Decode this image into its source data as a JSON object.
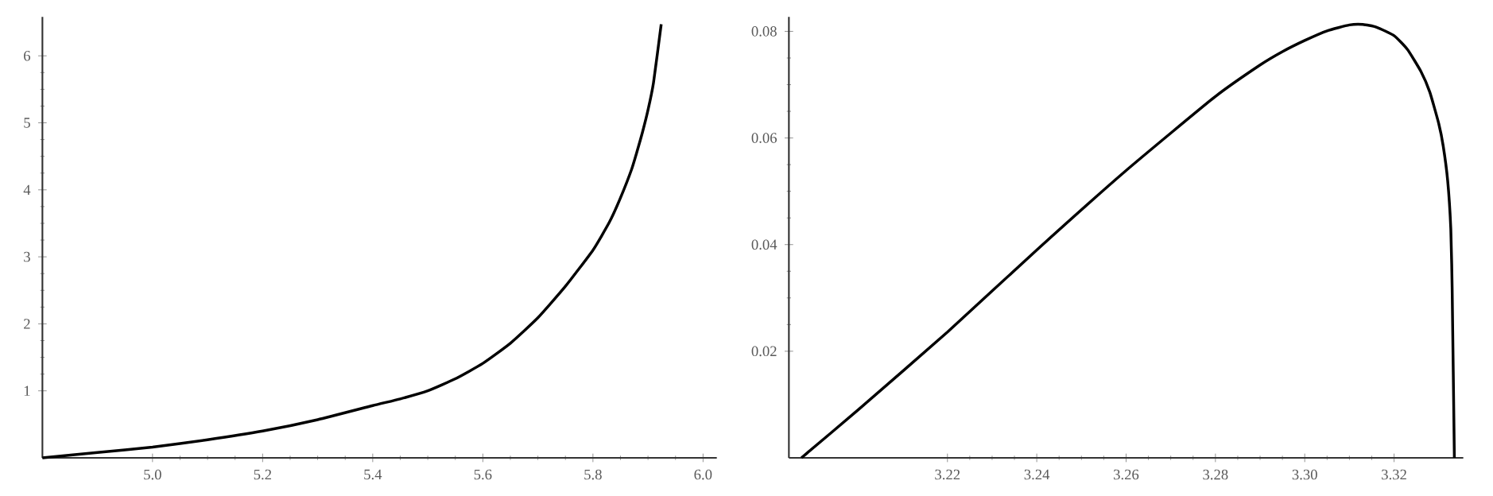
{
  "chart_data": [
    {
      "type": "line",
      "xlim": [
        4.8,
        6.025
      ],
      "ylim": [
        0,
        6.58
      ],
      "xticks": [
        {
          "value": 5.0,
          "label": "5.0"
        },
        5.2,
        5.4,
        5.6,
        5.8,
        {
          "value": 6.0,
          "label": "6.0"
        }
      ],
      "yticks": [
        1,
        2,
        3,
        4,
        5,
        6
      ],
      "series": [
        {
          "color": "#000000",
          "x": [
            4.8,
            4.9,
            5.0,
            5.1,
            5.2,
            5.3,
            5.4,
            5.45,
            5.5,
            5.55,
            5.6,
            5.65,
            5.7,
            5.75,
            5.8,
            5.83,
            5.85,
            5.87,
            5.88,
            5.89,
            5.9,
            5.91,
            5.924
          ],
          "values": [
            0,
            0.08,
            0.16,
            0.27,
            0.4,
            0.57,
            0.78,
            0.88,
            1.0,
            1.18,
            1.41,
            1.71,
            2.09,
            2.56,
            3.1,
            3.52,
            3.88,
            4.3,
            4.57,
            4.86,
            5.19,
            5.6,
            6.47
          ]
        }
      ],
      "marker": "none",
      "line_style": "solid"
    },
    {
      "type": "line",
      "xlim": [
        3.1845,
        3.3355
      ],
      "ylim": [
        0,
        0.0827
      ],
      "xticks": [
        3.22,
        3.24,
        3.26,
        3.28,
        {
          "value": 3.3,
          "label": "3.30"
        },
        3.32
      ],
      "yticks": [
        0.02,
        0.04,
        0.06,
        0.08
      ],
      "series": [
        {
          "color": "#000000",
          "x": [
            3.1873,
            3.2,
            3.22,
            3.24,
            3.26,
            3.28,
            3.29,
            3.295,
            3.3,
            3.305,
            3.31,
            3.313,
            3.316,
            3.32,
            3.323,
            3.326,
            3.328,
            3.33,
            3.331,
            3.332,
            3.3327,
            3.333,
            3.3335
          ],
          "values": [
            0,
            0.009,
            0.0236,
            0.039,
            0.0539,
            0.0678,
            0.0737,
            0.0762,
            0.0783,
            0.0801,
            0.0812,
            0.0813,
            0.0808,
            0.0792,
            0.0766,
            0.0725,
            0.0686,
            0.0627,
            0.0585,
            0.052,
            0.043,
            0.032,
            0
          ]
        }
      ],
      "marker": "none",
      "line_style": "solid"
    }
  ]
}
